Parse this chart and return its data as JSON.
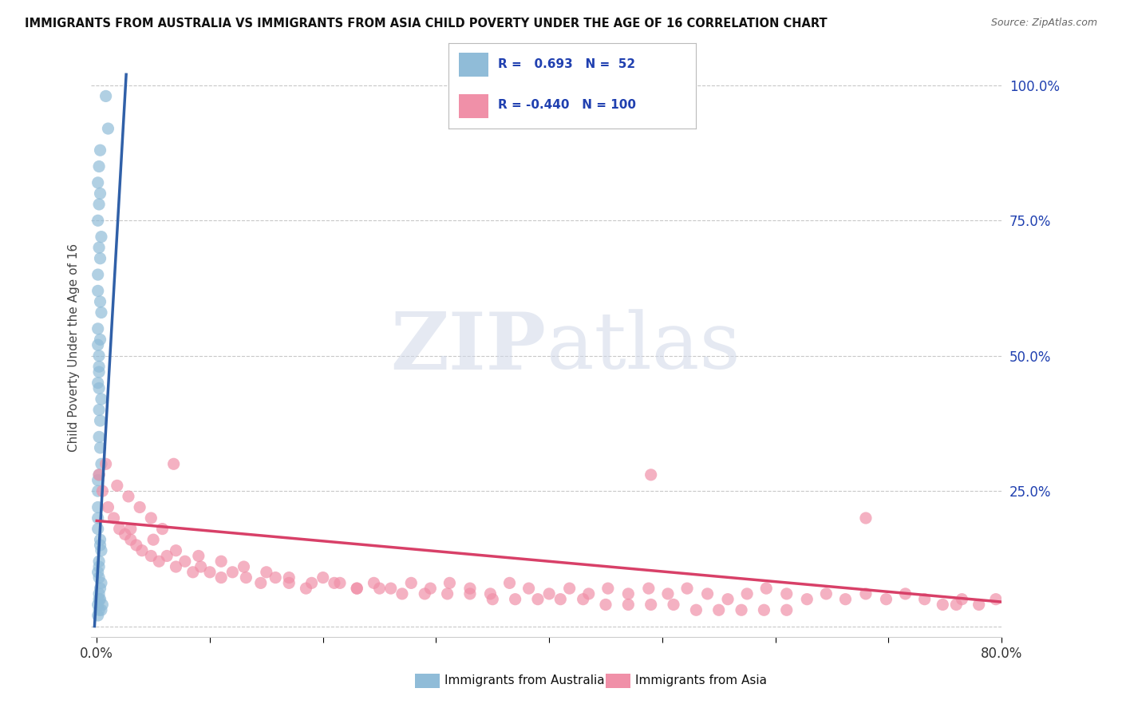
{
  "title": "IMMIGRANTS FROM AUSTRALIA VS IMMIGRANTS FROM ASIA CHILD POVERTY UNDER THE AGE OF 16 CORRELATION CHART",
  "source": "Source: ZipAtlas.com",
  "ylabel": "Child Poverty Under the Age of 16",
  "right_yticks": [
    0.0,
    0.25,
    0.5,
    0.75,
    1.0
  ],
  "right_yticklabels": [
    "",
    "25.0%",
    "50.0%",
    "75.0%",
    "100.0%"
  ],
  "legend_entries": [
    {
      "label": "Immigrants from Australia",
      "color": "#a8c8e8",
      "R": 0.693,
      "N": 52,
      "R_str": "0.693",
      "N_str": "52"
    },
    {
      "label": "Immigrants from Asia",
      "color": "#f4a8bc",
      "R": -0.44,
      "N": 100,
      "R_str": "-0.440",
      "N_str": "100"
    }
  ],
  "watermark_zip": "ZIP",
  "watermark_atlas": "atlas",
  "australia_scatter_x": [
    0.002,
    0.005,
    0.001,
    0.003,
    0.004,
    0.002,
    0.001,
    0.003,
    0.002,
    0.004,
    0.001,
    0.002,
    0.003,
    0.001,
    0.002,
    0.004,
    0.001,
    0.003,
    0.002,
    0.001,
    0.003,
    0.002,
    0.004,
    0.001,
    0.002,
    0.003,
    0.001,
    0.002,
    0.004,
    0.001,
    0.002,
    0.001,
    0.003,
    0.002,
    0.001,
    0.004,
    0.002,
    0.003,
    0.001,
    0.002,
    0.001,
    0.003,
    0.002,
    0.004,
    0.001,
    0.002,
    0.003,
    0.001,
    0.002,
    0.003,
    0.01,
    0.008
  ],
  "australia_scatter_y": [
    0.03,
    0.04,
    0.02,
    0.05,
    0.03,
    0.06,
    0.04,
    0.07,
    0.05,
    0.08,
    0.1,
    0.12,
    0.15,
    0.18,
    0.09,
    0.14,
    0.2,
    0.16,
    0.11,
    0.22,
    0.38,
    0.35,
    0.42,
    0.45,
    0.4,
    0.33,
    0.25,
    0.28,
    0.3,
    0.27,
    0.5,
    0.55,
    0.6,
    0.48,
    0.52,
    0.58,
    0.47,
    0.53,
    0.62,
    0.44,
    0.65,
    0.68,
    0.7,
    0.72,
    0.75,
    0.78,
    0.8,
    0.82,
    0.85,
    0.88,
    0.92,
    0.98
  ],
  "asia_scatter_x": [
    0.002,
    0.005,
    0.01,
    0.015,
    0.02,
    0.025,
    0.03,
    0.035,
    0.04,
    0.048,
    0.055,
    0.062,
    0.07,
    0.078,
    0.085,
    0.092,
    0.1,
    0.11,
    0.12,
    0.132,
    0.145,
    0.158,
    0.17,
    0.185,
    0.2,
    0.215,
    0.23,
    0.245,
    0.26,
    0.278,
    0.295,
    0.312,
    0.33,
    0.348,
    0.365,
    0.382,
    0.4,
    0.418,
    0.435,
    0.452,
    0.47,
    0.488,
    0.505,
    0.522,
    0.54,
    0.558,
    0.575,
    0.592,
    0.61,
    0.628,
    0.645,
    0.662,
    0.68,
    0.698,
    0.715,
    0.732,
    0.748,
    0.765,
    0.78,
    0.795,
    0.03,
    0.05,
    0.07,
    0.09,
    0.11,
    0.13,
    0.15,
    0.17,
    0.19,
    0.21,
    0.23,
    0.25,
    0.27,
    0.29,
    0.31,
    0.33,
    0.35,
    0.37,
    0.39,
    0.41,
    0.43,
    0.45,
    0.47,
    0.49,
    0.51,
    0.53,
    0.55,
    0.57,
    0.59,
    0.61,
    0.008,
    0.018,
    0.028,
    0.038,
    0.048,
    0.058,
    0.068,
    0.49,
    0.68,
    0.76
  ],
  "asia_scatter_y": [
    0.28,
    0.25,
    0.22,
    0.2,
    0.18,
    0.17,
    0.16,
    0.15,
    0.14,
    0.13,
    0.12,
    0.13,
    0.11,
    0.12,
    0.1,
    0.11,
    0.1,
    0.09,
    0.1,
    0.09,
    0.08,
    0.09,
    0.08,
    0.07,
    0.09,
    0.08,
    0.07,
    0.08,
    0.07,
    0.08,
    0.07,
    0.08,
    0.07,
    0.06,
    0.08,
    0.07,
    0.06,
    0.07,
    0.06,
    0.07,
    0.06,
    0.07,
    0.06,
    0.07,
    0.06,
    0.05,
    0.06,
    0.07,
    0.06,
    0.05,
    0.06,
    0.05,
    0.06,
    0.05,
    0.06,
    0.05,
    0.04,
    0.05,
    0.04,
    0.05,
    0.18,
    0.16,
    0.14,
    0.13,
    0.12,
    0.11,
    0.1,
    0.09,
    0.08,
    0.08,
    0.07,
    0.07,
    0.06,
    0.06,
    0.06,
    0.06,
    0.05,
    0.05,
    0.05,
    0.05,
    0.05,
    0.04,
    0.04,
    0.04,
    0.04,
    0.03,
    0.03,
    0.03,
    0.03,
    0.03,
    0.3,
    0.26,
    0.24,
    0.22,
    0.2,
    0.18,
    0.3,
    0.28,
    0.2,
    0.04
  ],
  "australia_line_x": [
    -0.002,
    0.026
  ],
  "australia_line_y": [
    0.0,
    1.02
  ],
  "asia_line_x": [
    0.0,
    0.8
  ],
  "asia_line_y": [
    0.195,
    0.045
  ],
  "xlim": [
    -0.005,
    0.8
  ],
  "ylim": [
    -0.02,
    1.05
  ],
  "australia_color": "#90bcd8",
  "australia_line_color": "#3060a8",
  "asia_color": "#f090a8",
  "asia_line_color": "#d84068",
  "legend_R_color": "#2040b0",
  "grid_color": "#c8c8c8",
  "background_color": "#ffffff"
}
